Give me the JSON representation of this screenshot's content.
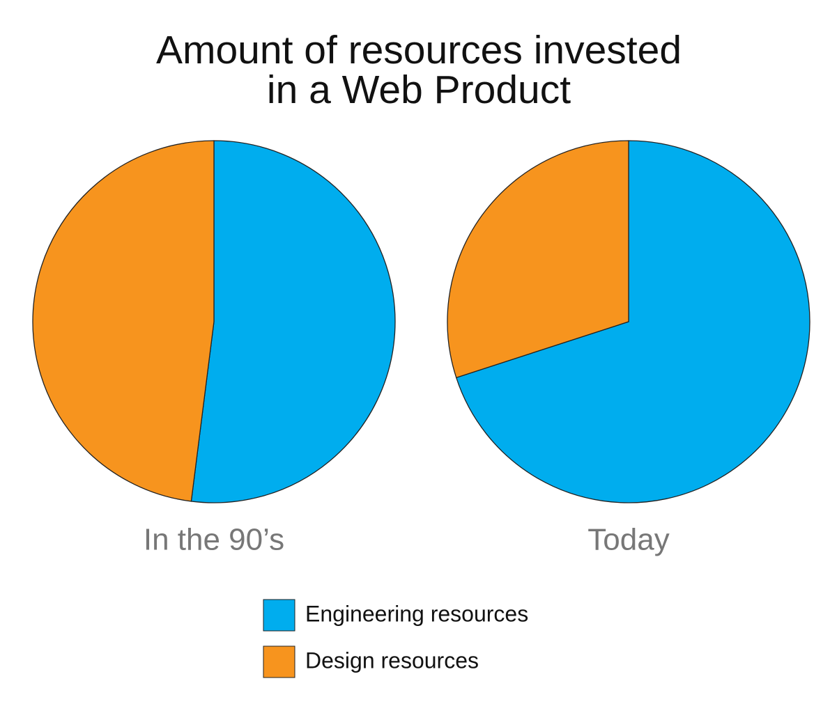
{
  "title": [
    "Amount of resources invested",
    "in a Web Product"
  ],
  "chart_data": [
    {
      "type": "pie",
      "title": "In the 90’s",
      "categories": [
        "Engineering resources",
        "Design resources"
      ],
      "values": [
        52,
        48
      ],
      "colors": [
        "#00adee",
        "#f7941e"
      ]
    },
    {
      "type": "pie",
      "title": "Today",
      "categories": [
        "Engineering resources",
        "Design resources"
      ],
      "values": [
        70,
        30
      ],
      "colors": [
        "#00adee",
        "#f7941e"
      ]
    }
  ]
}
